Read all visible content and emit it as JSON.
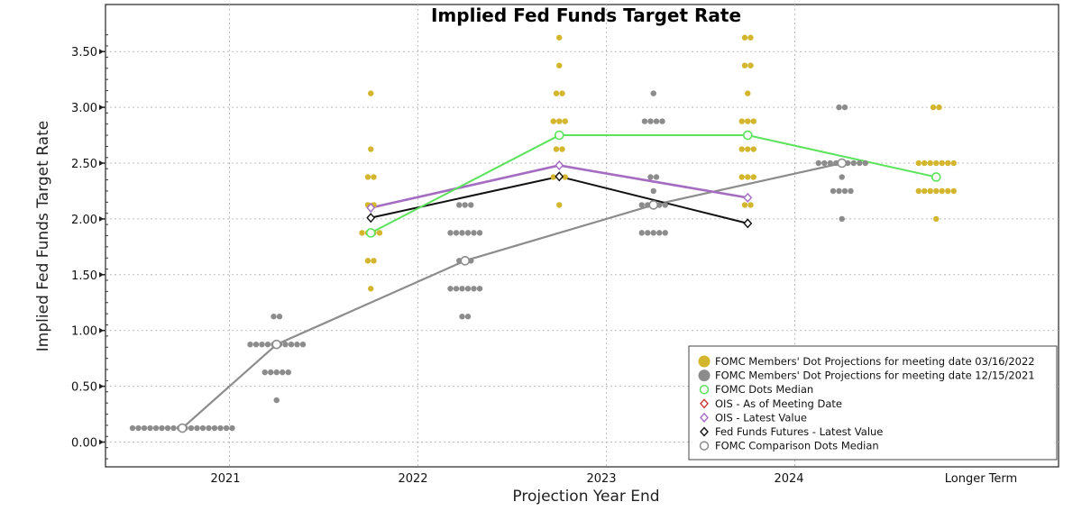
{
  "chart_data": {
    "type": "scatter",
    "title": "Implied Fed Funds Target Rate",
    "xlabel": "Projection Year End",
    "ylabel": "Implied Fed Funds Target Rate",
    "categories": [
      "2021",
      "2022",
      "2023",
      "2024",
      "Longer Term"
    ],
    "ylim": [
      -0.25,
      3.75
    ],
    "yticks": [
      "0.00",
      "0.50",
      "1.00",
      "1.50",
      "2.00",
      "2.50",
      "3.00",
      "3.50"
    ],
    "grid": true,
    "legend_position": "bottom-right",
    "colors": {
      "dots_2022": "#d4b62e",
      "dots_2021": "#8c8c8c",
      "median": "#5be35b",
      "ois_meeting": "#cc3333",
      "ois_latest": "#a46dc2",
      "futures": "#111111",
      "comparison_median": "#8c8c8c"
    },
    "series": [
      {
        "name": "FOMC Members' Dot Projections for meeting date 03/16/2022",
        "kind": "dots",
        "color": "#d4b62e",
        "points": [
          {
            "x": 1.25,
            "y": 3.125,
            "n": 1
          },
          {
            "x": 1.25,
            "y": 2.625,
            "n": 1
          },
          {
            "x": 1.25,
            "y": 2.375,
            "n": 2
          },
          {
            "x": 1.25,
            "y": 2.125,
            "n": 2
          },
          {
            "x": 1.25,
            "y": 1.875,
            "n": 4
          },
          {
            "x": 1.25,
            "y": 1.625,
            "n": 2
          },
          {
            "x": 1.25,
            "y": 1.375,
            "n": 1
          },
          {
            "x": 2.25,
            "y": 3.625,
            "n": 1
          },
          {
            "x": 2.25,
            "y": 3.375,
            "n": 1
          },
          {
            "x": 2.25,
            "y": 3.125,
            "n": 2
          },
          {
            "x": 2.25,
            "y": 2.875,
            "n": 3
          },
          {
            "x": 2.25,
            "y": 2.625,
            "n": 2
          },
          {
            "x": 2.25,
            "y": 2.375,
            "n": 3
          },
          {
            "x": 2.25,
            "y": 2.125,
            "n": 1
          },
          {
            "x": 3.25,
            "y": 3.625,
            "n": 2
          },
          {
            "x": 3.25,
            "y": 3.375,
            "n": 2
          },
          {
            "x": 3.25,
            "y": 3.125,
            "n": 1
          },
          {
            "x": 3.25,
            "y": 2.875,
            "n": 3
          },
          {
            "x": 3.25,
            "y": 2.625,
            "n": 3
          },
          {
            "x": 3.25,
            "y": 2.375,
            "n": 3
          },
          {
            "x": 3.25,
            "y": 2.125,
            "n": 2
          },
          {
            "x": 4.25,
            "y": 3.0,
            "n": 2
          },
          {
            "x": 4.25,
            "y": 2.5,
            "n": 7
          },
          {
            "x": 4.25,
            "y": 2.375,
            "n": 1
          },
          {
            "x": 4.25,
            "y": 2.25,
            "n": 7
          },
          {
            "x": 4.25,
            "y": 2.0,
            "n": 1
          }
        ]
      },
      {
        "name": "FOMC Members' Dot Projections for meeting date 12/15/2021",
        "kind": "dots",
        "color": "#8c8c8c",
        "points": [
          {
            "x": 0.25,
            "y": 0.125,
            "n": 18
          },
          {
            "x": 0.75,
            "y": 1.125,
            "n": 2
          },
          {
            "x": 0.75,
            "y": 0.875,
            "n": 10
          },
          {
            "x": 0.75,
            "y": 0.625,
            "n": 5
          },
          {
            "x": 0.75,
            "y": 0.375,
            "n": 1
          },
          {
            "x": 1.75,
            "y": 2.125,
            "n": 3
          },
          {
            "x": 1.75,
            "y": 1.875,
            "n": 6
          },
          {
            "x": 1.75,
            "y": 1.625,
            "n": 3
          },
          {
            "x": 1.75,
            "y": 1.375,
            "n": 6
          },
          {
            "x": 1.75,
            "y": 1.125,
            "n": 2
          },
          {
            "x": 2.75,
            "y": 3.125,
            "n": 1
          },
          {
            "x": 2.75,
            "y": 2.875,
            "n": 4
          },
          {
            "x": 2.75,
            "y": 2.375,
            "n": 2
          },
          {
            "x": 2.75,
            "y": 2.25,
            "n": 1
          },
          {
            "x": 2.75,
            "y": 2.125,
            "n": 5
          },
          {
            "x": 2.75,
            "y": 1.875,
            "n": 5
          },
          {
            "x": 3.75,
            "y": 3.0,
            "n": 2
          },
          {
            "x": 3.75,
            "y": 2.5,
            "n": 9
          },
          {
            "x": 3.75,
            "y": 2.375,
            "n": 1
          },
          {
            "x": 3.75,
            "y": 2.25,
            "n": 4
          },
          {
            "x": 3.75,
            "y": 2.0,
            "n": 1
          }
        ]
      },
      {
        "name": "FOMC Dots Median",
        "kind": "line",
        "marker": "circle",
        "color": "#5be35b",
        "points": [
          {
            "x": 1.25,
            "y": 1.875
          },
          {
            "x": 2.25,
            "y": 2.75
          },
          {
            "x": 3.25,
            "y": 2.75
          },
          {
            "x": 4.25,
            "y": 2.375
          }
        ]
      },
      {
        "name": "OIS - As of Meeting Date",
        "kind": "line",
        "marker": "diamond",
        "color": "#cc3333",
        "points": []
      },
      {
        "name": "OIS - Latest Value",
        "kind": "line",
        "marker": "diamond",
        "color": "#a46dc2",
        "points": [
          {
            "x": 1.25,
            "y": 2.1
          },
          {
            "x": 2.25,
            "y": 2.48
          },
          {
            "x": 3.25,
            "y": 2.19
          }
        ]
      },
      {
        "name": "Fed Funds Futures - Latest Value",
        "kind": "line",
        "marker": "diamond",
        "color": "#111111",
        "points": [
          {
            "x": 1.25,
            "y": 2.01
          },
          {
            "x": 2.25,
            "y": 2.38
          },
          {
            "x": 3.25,
            "y": 1.96
          }
        ]
      },
      {
        "name": "FOMC Comparison Dots Median",
        "kind": "line",
        "marker": "circle",
        "color": "#8c8c8c",
        "points": [
          {
            "x": 0.25,
            "y": 0.125
          },
          {
            "x": 0.75,
            "y": 0.875
          },
          {
            "x": 1.75,
            "y": 1.625
          },
          {
            "x": 2.75,
            "y": 2.125
          },
          {
            "x": 3.75,
            "y": 2.5
          }
        ]
      }
    ]
  }
}
